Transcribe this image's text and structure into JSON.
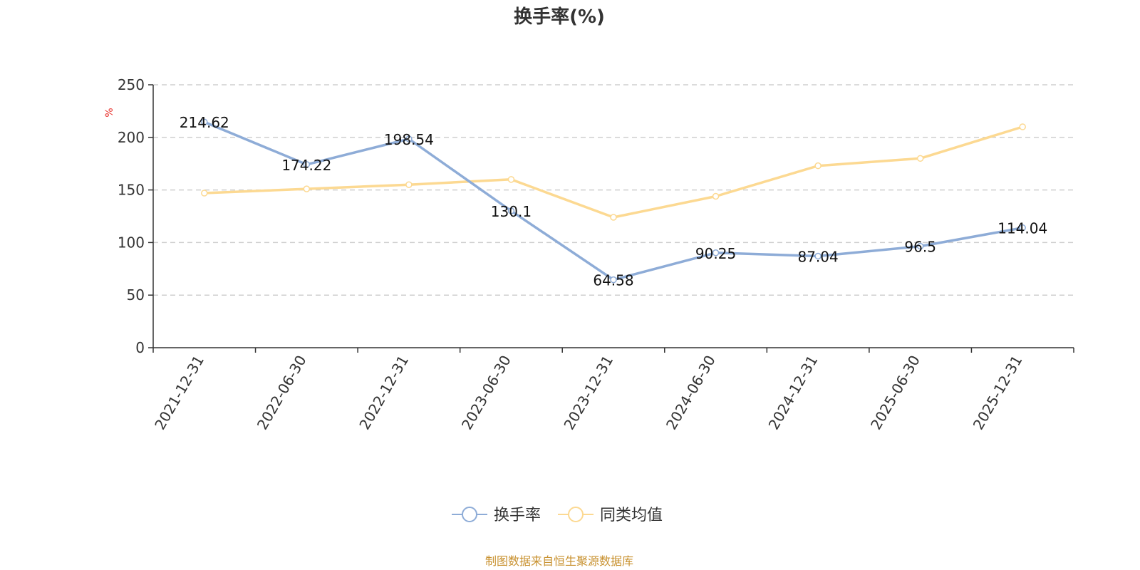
{
  "chart_data": {
    "type": "line",
    "title": "换手率(%)",
    "ylabel": "%",
    "ylim": [
      0,
      250
    ],
    "yticks": [
      "0",
      "50",
      "100",
      "150",
      "200",
      "250"
    ],
    "categories": [
      "2021-12-31",
      "2022-06-30",
      "2022-12-31",
      "2023-06-30",
      "2023-12-31",
      "2024-06-30",
      "2024-12-31",
      "2025-06-30",
      "2025-12-31"
    ],
    "series": [
      {
        "name": "换手率",
        "color": "#8eacd7",
        "values": [
          214.62,
          174.22,
          198.54,
          130.1,
          64.58,
          90.25,
          87.04,
          96.5,
          114.04
        ],
        "labels": [
          "214.62",
          "174.22",
          "198.54",
          "130.1",
          "64.58",
          "90.25",
          "87.04",
          "96.5",
          "114.04"
        ]
      },
      {
        "name": "同类均值",
        "color": "#fcd992",
        "values": [
          147,
          151,
          155,
          160,
          124,
          144,
          173,
          180,
          210
        ]
      }
    ],
    "grid": true,
    "legend_position": "bottom",
    "unit_color": "#e8312c"
  },
  "source_note": "制图数据来自恒生聚源数据库",
  "source_color": "#c8912f"
}
